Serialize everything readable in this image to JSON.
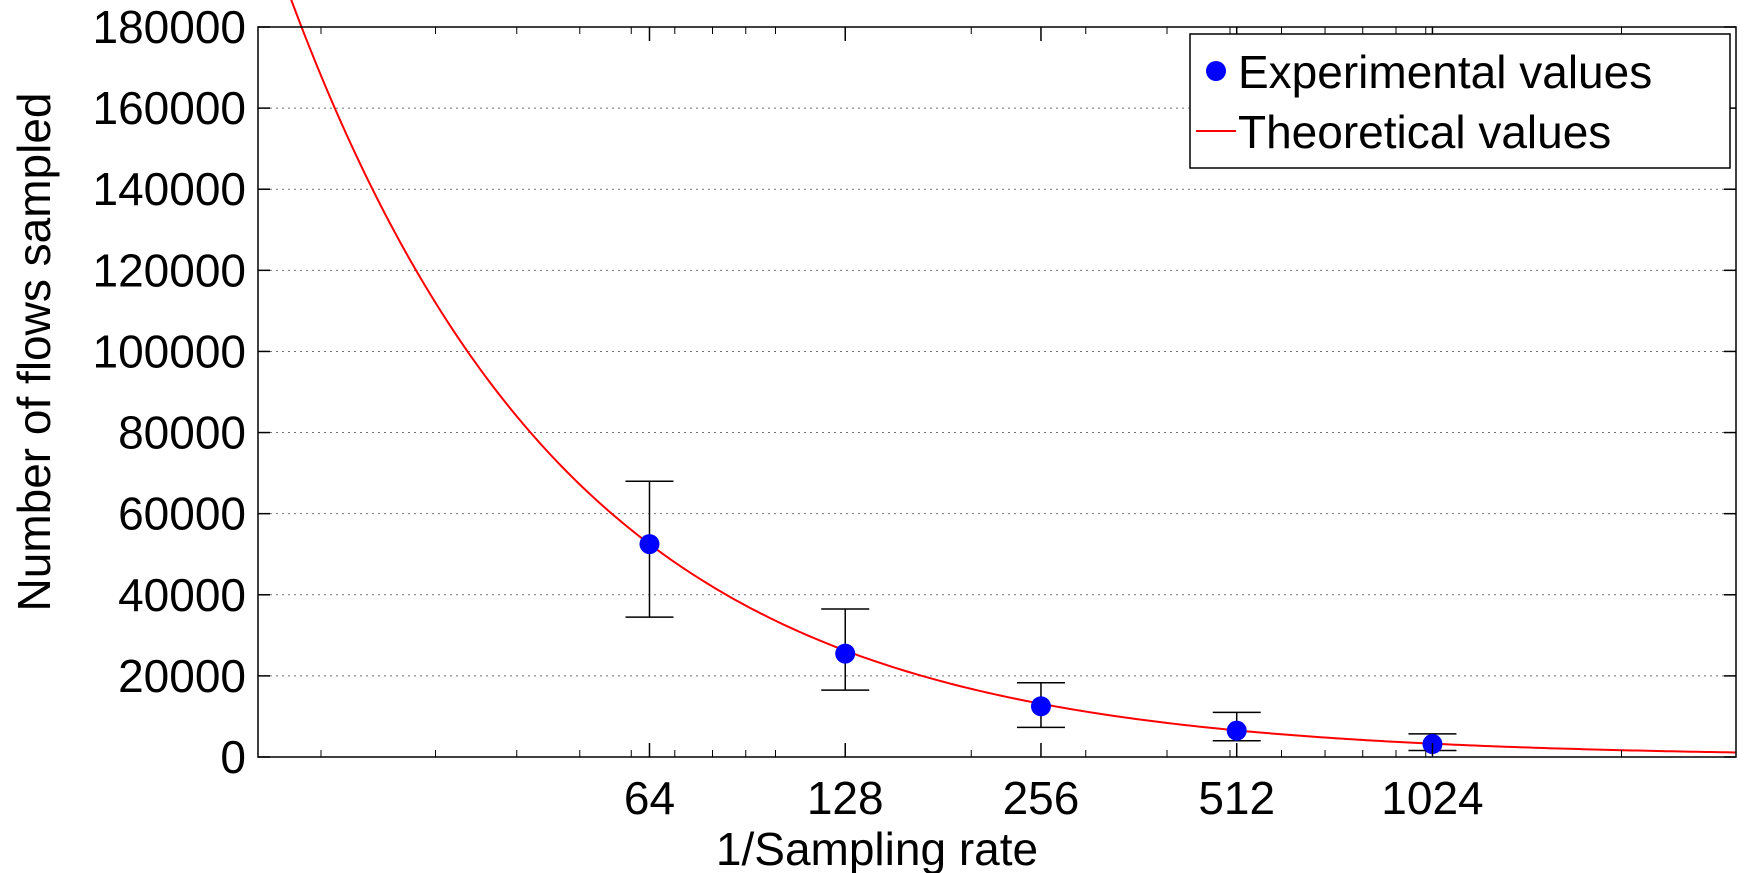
{
  "chart_data": {
    "type": "scatter",
    "title": "",
    "xlabel": "1/Sampling rate",
    "ylabel": "Number of flows sampled",
    "x_scale": "log2",
    "xlim": [
      16,
      3000
    ],
    "ylim": [
      0,
      180000
    ],
    "x_ticks": [
      64,
      128,
      256,
      512,
      1024
    ],
    "x_tick_labels": [
      "64",
      "128",
      "256",
      "512",
      "1024"
    ],
    "y_ticks": [
      0,
      20000,
      40000,
      60000,
      80000,
      100000,
      120000,
      140000,
      160000,
      180000
    ],
    "y_tick_labels": [
      "0",
      "20000",
      "40000",
      "60000",
      "80000",
      "100000",
      "120000",
      "140000",
      "160000",
      "180000"
    ],
    "grid": "horizontal dotted",
    "legend": {
      "position": "top-right",
      "entries": [
        "Experimental values",
        "Theoretical values"
      ]
    },
    "series": [
      {
        "name": "Experimental values",
        "kind": "points-with-errorbars",
        "color": "#0000ff",
        "x": [
          64,
          128,
          256,
          512,
          1024
        ],
        "y": [
          52500,
          25500,
          12500,
          6500,
          3200
        ],
        "y_low": [
          34500,
          16500,
          7300,
          4000,
          1600
        ],
        "y_high": [
          68000,
          36500,
          18300,
          11000,
          5700
        ]
      },
      {
        "name": "Theoretical values",
        "kind": "line",
        "color": "#ff0000",
        "formula": "y = 3360000 / x",
        "x_range": [
          16,
          3000
        ]
      }
    ]
  }
}
